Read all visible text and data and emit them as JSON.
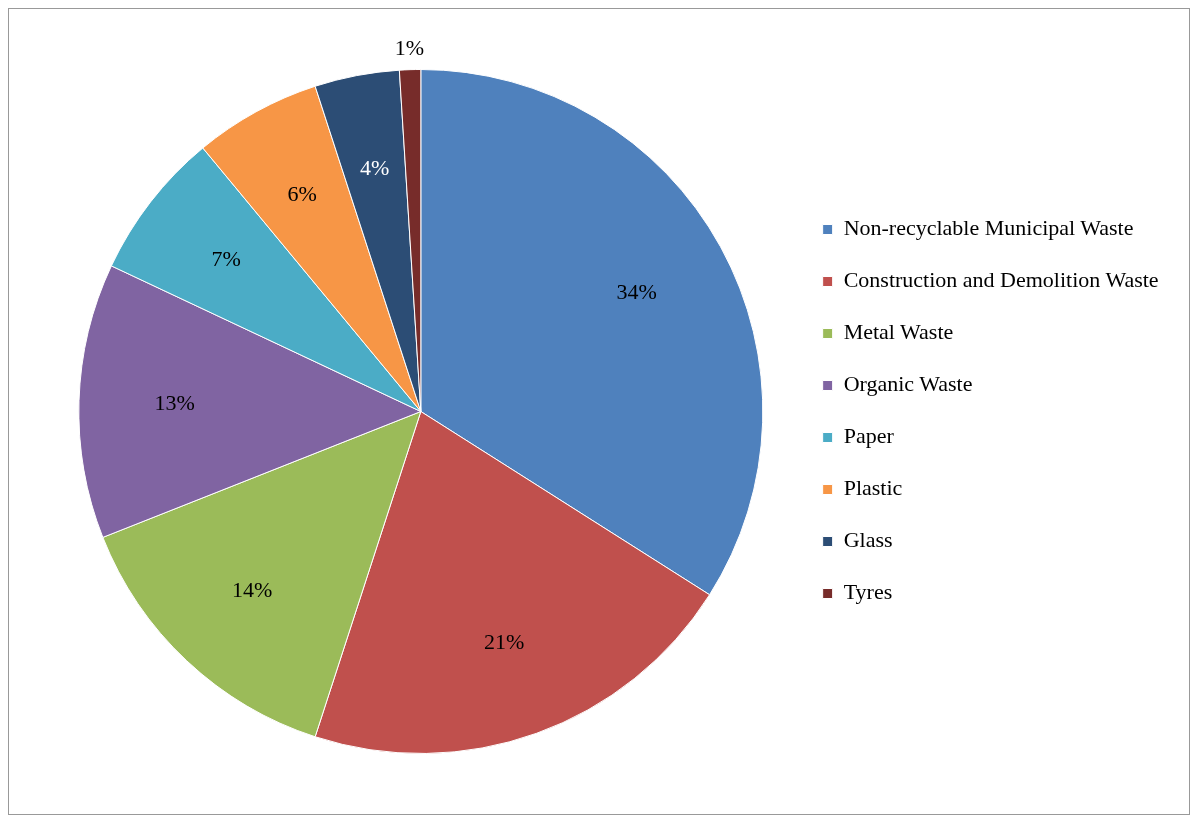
{
  "chart_data": {
    "type": "pie",
    "categories": [
      "Non-recyclable Municipal Waste",
      "Construction and Demolition Waste",
      "Metal Waste",
      "Organic Waste",
      "Paper",
      "Plastic",
      "Glass",
      "Tyres"
    ],
    "values": [
      34,
      21,
      14,
      13,
      7,
      6,
      4,
      1
    ],
    "colors": [
      "#4f81bd",
      "#c0504d",
      "#9bbb59",
      "#8064a2",
      "#4bacc6",
      "#f79646",
      "#2c4d75",
      "#772c2a"
    ],
    "value_labels": [
      "34%",
      "21%",
      "14%",
      "13%",
      "7%",
      "6%",
      "4%",
      "1%"
    ],
    "legend": "right"
  }
}
